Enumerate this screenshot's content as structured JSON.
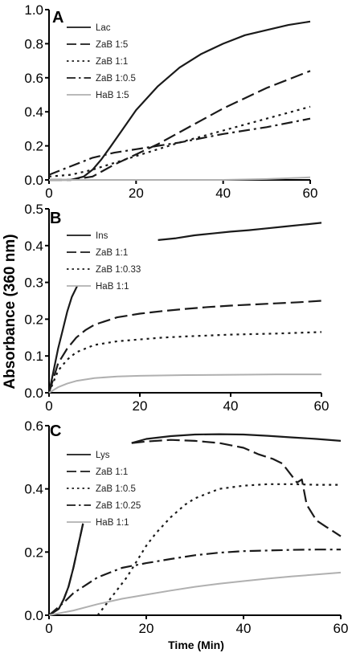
{
  "figure": {
    "ylabel": "Absorbance (360 nm)",
    "xlabel": "Time (Min)"
  },
  "chart_data": [
    {
      "type": "line",
      "panel": "A",
      "xlim": [
        0,
        60
      ],
      "ylim": [
        0,
        1.0
      ],
      "xticks": [
        "0",
        "20",
        "40",
        "60"
      ],
      "yticks": [
        "0.0",
        "0.2",
        "0.4",
        "0.6",
        "0.8",
        "1.0"
      ],
      "legend_position": "top-left",
      "series": [
        {
          "name": "Lac",
          "style": "solid",
          "color": "#1a1a1a",
          "x": [
            0,
            5,
            8,
            10,
            12,
            14,
            17,
            20,
            25,
            30,
            35,
            40,
            45,
            50,
            55,
            60
          ],
          "y": [
            0,
            0,
            0.02,
            0.06,
            0.12,
            0.19,
            0.3,
            0.41,
            0.55,
            0.66,
            0.74,
            0.8,
            0.85,
            0.88,
            0.91,
            0.93
          ]
        },
        {
          "name": "ZaB 1:5",
          "style": "longdash",
          "color": "#1a1a1a",
          "x": [
            0,
            5,
            10,
            15,
            20,
            25,
            30,
            35,
            40,
            45,
            50,
            55,
            60
          ],
          "y": [
            0,
            0,
            0.02,
            0.09,
            0.15,
            0.21,
            0.28,
            0.35,
            0.42,
            0.48,
            0.54,
            0.59,
            0.64
          ]
        },
        {
          "name": "ZaB 1:1",
          "style": "dot",
          "color": "#1a1a1a",
          "x": [
            0,
            5,
            10,
            15,
            20,
            30,
            40,
            50,
            60
          ],
          "y": [
            0.02,
            0.03,
            0.06,
            0.1,
            0.14,
            0.22,
            0.29,
            0.36,
            0.43
          ]
        },
        {
          "name": "ZaB 1:0.5",
          "style": "dashdot",
          "color": "#1a1a1a",
          "x": [
            0,
            5,
            10,
            15,
            20,
            30,
            40,
            50,
            60
          ],
          "y": [
            0.03,
            0.08,
            0.13,
            0.16,
            0.18,
            0.22,
            0.27,
            0.31,
            0.36
          ]
        },
        {
          "name": "HaB 1:5",
          "style": "solid",
          "color": "#b0b0b0",
          "x": [
            0,
            40,
            50,
            55,
            60
          ],
          "y": [
            0,
            0,
            0.005,
            0.01,
            0.015
          ]
        }
      ]
    },
    {
      "type": "line",
      "panel": "B",
      "xlim": [
        0,
        60
      ],
      "ylim": [
        0,
        0.5
      ],
      "xticks": [
        "0",
        "20",
        "40",
        "60"
      ],
      "yticks": [
        "0.0",
        "0.1",
        "0.2",
        "0.3",
        "0.4",
        "0.5"
      ],
      "legend_position": "top-left",
      "series": [
        {
          "name": "Ins",
          "style": "solid",
          "color": "#1a1a1a",
          "segments": [
            {
              "x": [
                0,
                1,
                2,
                3,
                4,
                5,
                6.2
              ],
              "y": [
                0,
                0.06,
                0.12,
                0.17,
                0.22,
                0.26,
                0.29
              ]
            },
            {
              "x": [
                24,
                28,
                32,
                36,
                40,
                44,
                48,
                52,
                56,
                60
              ],
              "y": [
                0.415,
                0.42,
                0.428,
                0.433,
                0.438,
                0.442,
                0.447,
                0.452,
                0.457,
                0.462
              ]
            }
          ]
        },
        {
          "name": "ZaB 1:1",
          "style": "longdash",
          "color": "#1a1a1a",
          "x": [
            0,
            2,
            4,
            6,
            8,
            10,
            15,
            20,
            25,
            30,
            35,
            40,
            45,
            50,
            55,
            60
          ],
          "y": [
            0,
            0.08,
            0.12,
            0.15,
            0.17,
            0.185,
            0.205,
            0.215,
            0.222,
            0.228,
            0.233,
            0.237,
            0.24,
            0.243,
            0.246,
            0.25
          ]
        },
        {
          "name": "ZaB 1:0.33",
          "style": "dot",
          "color": "#1a1a1a",
          "x": [
            0,
            2,
            4,
            6,
            8,
            10,
            15,
            20,
            25,
            30,
            40,
            50,
            60
          ],
          "y": [
            0,
            0.06,
            0.09,
            0.11,
            0.12,
            0.13,
            0.14,
            0.145,
            0.15,
            0.153,
            0.158,
            0.161,
            0.165
          ]
        },
        {
          "name": "HaB 1:1",
          "style": "solid",
          "color": "#b0b0b0",
          "x": [
            0,
            2,
            4,
            6,
            10,
            15,
            20,
            30,
            40,
            50,
            60
          ],
          "y": [
            0,
            0.015,
            0.025,
            0.032,
            0.04,
            0.044,
            0.046,
            0.048,
            0.049,
            0.05,
            0.05
          ]
        }
      ]
    },
    {
      "type": "line",
      "panel": "C",
      "xlim": [
        0,
        60
      ],
      "ylim": [
        0,
        0.6
      ],
      "xticks": [
        "0",
        "20",
        "40",
        "60"
      ],
      "yticks": [
        "0.0",
        "0.2",
        "0.4",
        "0.6"
      ],
      "legend_position": "top-left",
      "series": [
        {
          "name": "Lys",
          "style": "solid",
          "color": "#1a1a1a",
          "segments": [
            {
              "x": [
                0,
                2,
                3,
                4,
                5,
                6,
                7
              ],
              "y": [
                0,
                0.02,
                0.05,
                0.09,
                0.15,
                0.22,
                0.29
              ]
            },
            {
              "x": [
                17,
                20,
                25,
                30,
                35,
                40,
                45,
                50,
                55,
                60
              ],
              "y": [
                0.545,
                0.558,
                0.567,
                0.572,
                0.573,
                0.572,
                0.568,
                0.563,
                0.558,
                0.552
              ]
            }
          ]
        },
        {
          "name": "ZaB 1:1",
          "style": "longdash",
          "color": "#1a1a1a",
          "segments": [
            {
              "x": [
                0,
                2,
                3,
                4,
                5,
                6,
                7
              ],
              "y": [
                0,
                0.02,
                0.05,
                0.09,
                0.15,
                0.22,
                0.29
              ]
            },
            {
              "x": [
                17,
                20,
                25,
                30,
                35,
                40,
                43,
                46,
                48,
                50,
                51,
                52,
                53,
                55,
                57,
                59,
                60
              ],
              "y": [
                0.545,
                0.55,
                0.555,
                0.552,
                0.545,
                0.53,
                0.51,
                0.495,
                0.48,
                0.44,
                0.42,
                0.43,
                0.35,
                0.3,
                0.28,
                0.26,
                0.25
              ]
            }
          ]
        },
        {
          "name": "ZaB 1:0.5",
          "style": "dot",
          "color": "#1a1a1a",
          "x": [
            10,
            12,
            14,
            16,
            18,
            20,
            22,
            25,
            28,
            30,
            35,
            40,
            45,
            50,
            55,
            60
          ],
          "y": [
            0,
            0.04,
            0.08,
            0.12,
            0.17,
            0.22,
            0.26,
            0.31,
            0.35,
            0.37,
            0.4,
            0.41,
            0.415,
            0.415,
            0.413,
            0.413
          ]
        },
        {
          "name": "ZaB 1:0.25",
          "style": "dashdot",
          "color": "#1a1a1a",
          "x": [
            0,
            3,
            5,
            8,
            10,
            15,
            20,
            25,
            30,
            35,
            40,
            45,
            50,
            55,
            60
          ],
          "y": [
            0,
            0.04,
            0.07,
            0.1,
            0.12,
            0.15,
            0.165,
            0.178,
            0.19,
            0.198,
            0.203,
            0.205,
            0.207,
            0.208,
            0.208
          ]
        },
        {
          "name": "HaB 1:1",
          "style": "solid",
          "color": "#b0b0b0",
          "x": [
            0,
            5,
            10,
            15,
            20,
            25,
            30,
            35,
            40,
            45,
            50,
            55,
            60
          ],
          "y": [
            0,
            0.015,
            0.035,
            0.052,
            0.065,
            0.078,
            0.09,
            0.1,
            0.108,
            0.116,
            0.123,
            0.129,
            0.135
          ]
        }
      ]
    }
  ]
}
